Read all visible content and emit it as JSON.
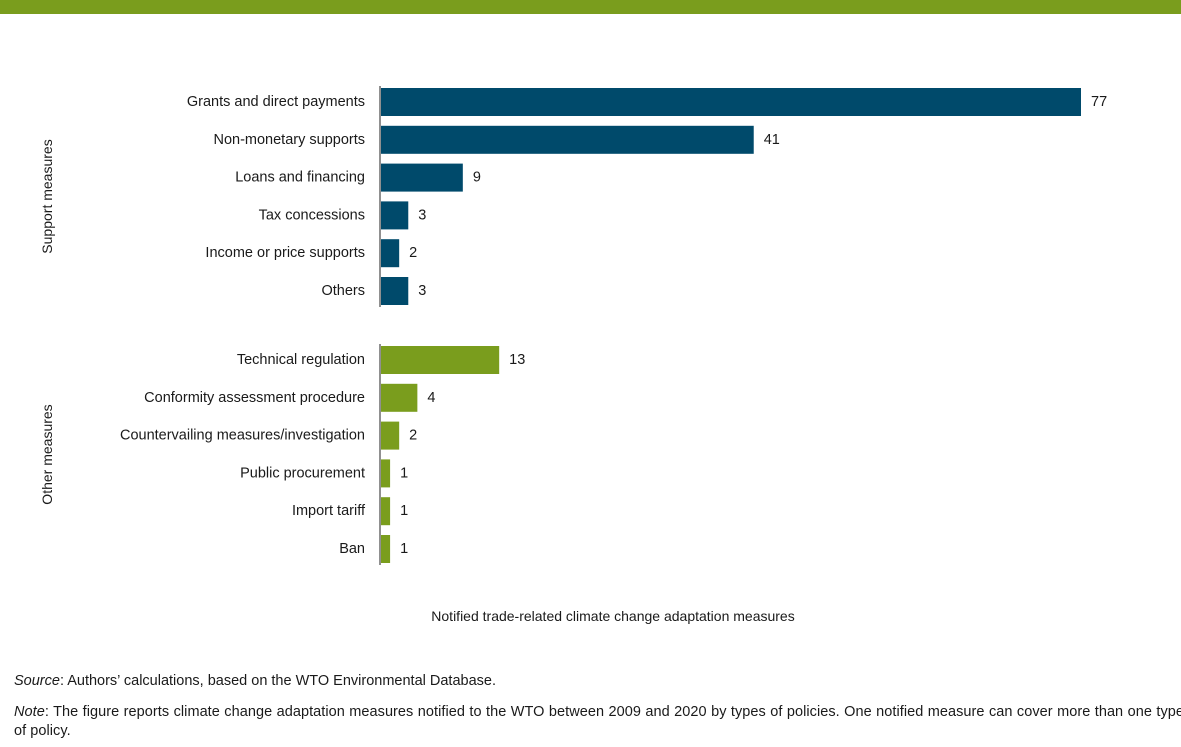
{
  "chart_data": {
    "type": "bar",
    "orientation": "horizontal",
    "xlabel": "Notified trade-related climate change adaptation measures",
    "groups": [
      {
        "name": "Support measures",
        "color": "#004a6b",
        "categories": [
          "Grants and direct payments",
          "Non-monetary supports",
          "Loans and financing",
          "Tax concessions",
          "Income or price supports",
          "Others"
        ],
        "values": [
          77,
          41,
          9,
          3,
          2,
          3
        ]
      },
      {
        "name": "Other measures",
        "color": "#7a9d1d",
        "categories": [
          "Technical regulation",
          "Conformity assessment procedure",
          "Countervailing measures/investigation",
          "Public procurement",
          "Import tariff",
          "Ban"
        ],
        "values": [
          13,
          4,
          2,
          1,
          1,
          1
        ]
      }
    ],
    "xlim": [
      0,
      77
    ],
    "grid": false,
    "legend": "none"
  },
  "footer": {
    "source_label": "Source",
    "source_text": ": Authors’ calculations, based on the WTO Environmental Database.",
    "note_label": "Note",
    "note_text": ": The figure reports climate change adaptation measures notified to the WTO between 2009 and 2020 by types of policies. One notified measure can cover more than one type of policy."
  },
  "colors": {
    "header_bar": "#7a9d1d",
    "support": "#004a6b",
    "other": "#7a9d1d"
  }
}
